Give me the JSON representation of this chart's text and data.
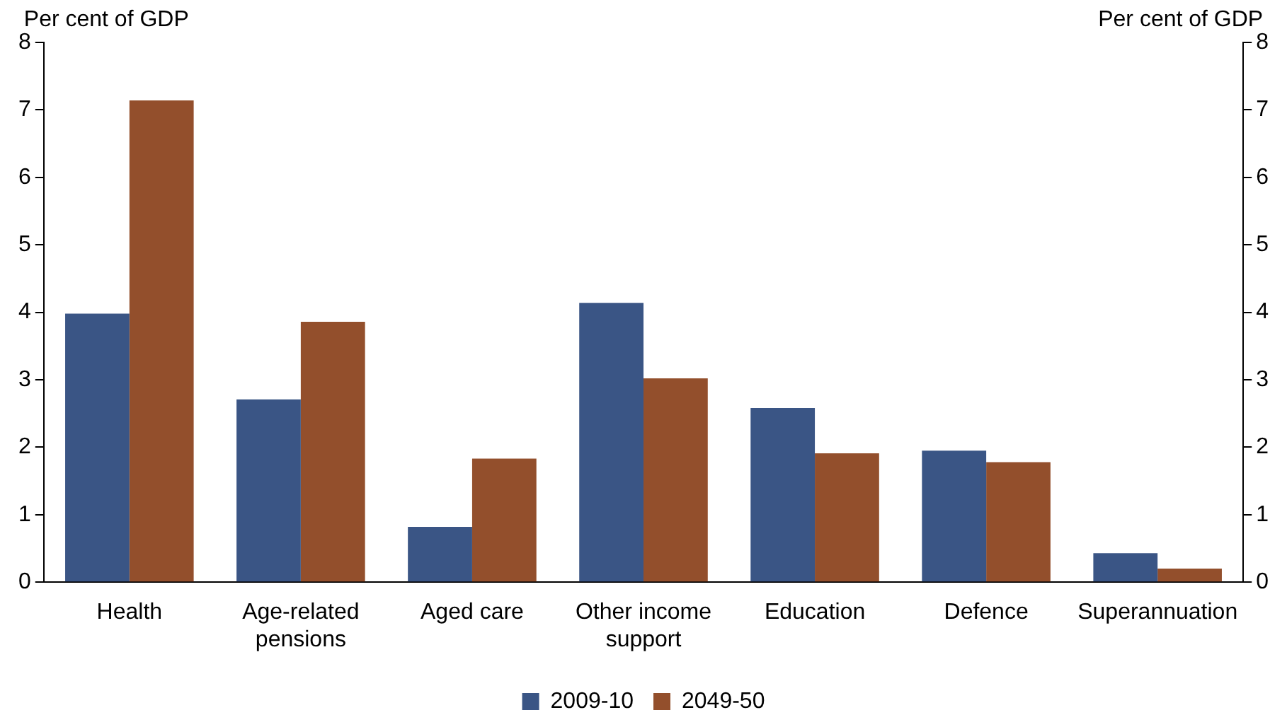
{
  "chart_data": {
    "type": "bar",
    "ylabel": "Per cent of GDP",
    "y2label": "Per cent of GDP",
    "categories": [
      "Health",
      "Age-related pensions",
      "Aged care",
      "Other income support",
      "Education",
      "Defence",
      "Superannuation"
    ],
    "series": [
      {
        "name": "2009-10",
        "color": "#3a5585",
        "values": [
          3.98,
          2.71,
          0.82,
          4.14,
          2.58,
          1.95,
          0.43
        ]
      },
      {
        "name": "2049-50",
        "color": "#934f2c",
        "values": [
          7.14,
          3.86,
          1.83,
          3.02,
          1.91,
          1.78,
          0.2
        ]
      }
    ],
    "ylim": [
      0,
      8
    ],
    "yticks": [
      0,
      1,
      2,
      3,
      4,
      5,
      6,
      7,
      8
    ],
    "y2lim": [
      0,
      8
    ],
    "y2ticks": [
      0,
      1,
      2,
      3,
      4,
      5,
      6,
      7,
      8
    ],
    "grid": false,
    "legend": "bottom"
  }
}
